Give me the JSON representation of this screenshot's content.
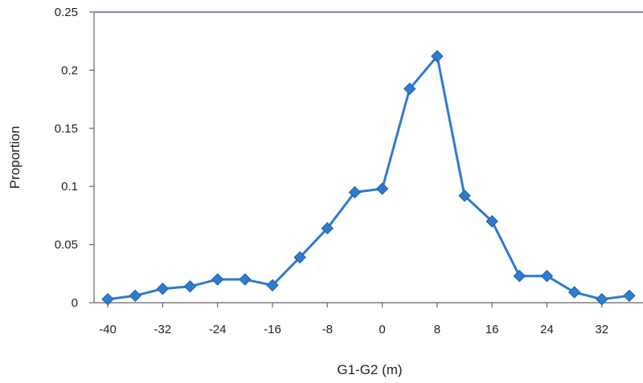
{
  "chart_data": {
    "type": "line",
    "title": "",
    "xlabel": "G1-G2 (m)",
    "ylabel": "Proportion",
    "xlim": [
      -42,
      38
    ],
    "ylim": [
      0,
      0.25
    ],
    "x_ticks": [
      -40,
      -32,
      -24,
      -16,
      -8,
      0,
      8,
      16,
      24,
      32
    ],
    "y_ticks": [
      0,
      0.05,
      0.1,
      0.15,
      0.2,
      0.25
    ],
    "y_tick_labels": [
      "0",
      "0.05",
      "0.1",
      "0.15",
      "0.2",
      "0.25"
    ],
    "grid": false,
    "legend": "none",
    "series": [
      {
        "color": "#2F7BD0",
        "marker": "diamond",
        "x": [
          -40,
          -36,
          -32,
          -28,
          -24,
          -20,
          -16,
          -12,
          -8,
          -4,
          0,
          4,
          8,
          12,
          16,
          20,
          24,
          28,
          32,
          36
        ],
        "y": [
          0.003,
          0.006,
          0.012,
          0.014,
          0.02,
          0.02,
          0.015,
          0.039,
          0.064,
          0.095,
          0.098,
          0.184,
          0.212,
          0.092,
          0.07,
          0.023,
          0.023,
          0.009,
          0.003,
          0.006
        ]
      }
    ]
  }
}
